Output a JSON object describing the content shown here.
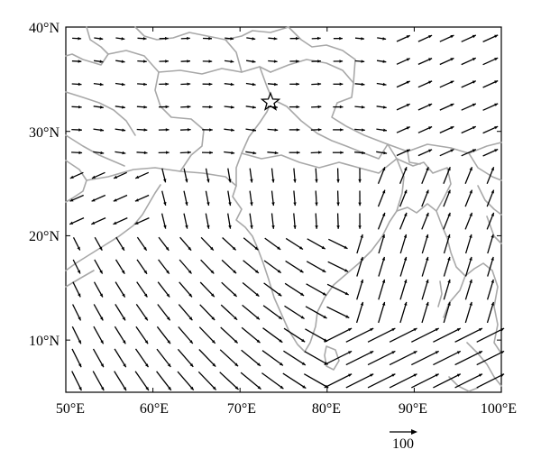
{
  "map": {
    "lon_range": [
      50,
      100
    ],
    "lat_range": [
      5,
      40
    ],
    "x_ticks": [
      "50°E",
      "60°E",
      "70°E",
      "80°E",
      "90°E",
      "100°E"
    ],
    "y_ticks": [
      "40°N",
      "30°N",
      "20°N",
      "10°N"
    ],
    "station_marker": {
      "symbol": "star",
      "lon": 73.5,
      "lat": 32.8
    },
    "coastline_color": "#a8a8a8",
    "vector_color": "#000000"
  },
  "legend": {
    "reference_label": "100"
  }
}
